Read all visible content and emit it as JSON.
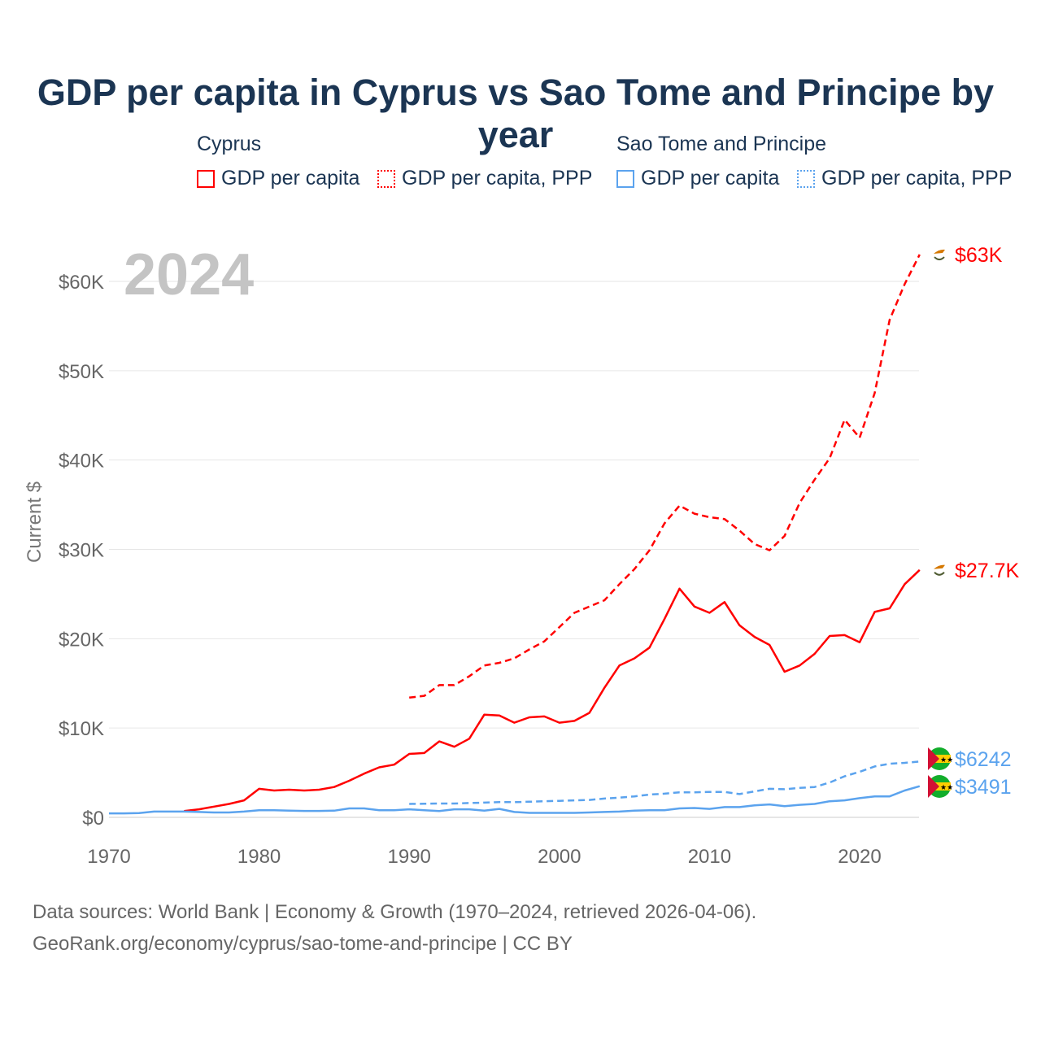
{
  "chart_data": {
    "type": "line",
    "title": "GDP per capita in Cyprus vs Sao Tome and Principe by year",
    "ylabel": "Current $",
    "xlabel": "",
    "year_watermark": "2024",
    "xlim": [
      1970,
      2024
    ],
    "ylim": [
      0,
      60000
    ],
    "x_ticks": [
      "1970",
      "1980",
      "1990",
      "2000",
      "2010",
      "2020"
    ],
    "y_ticks": [
      {
        "v": 0,
        "label": "$0"
      },
      {
        "v": 10,
        "label": "$10K"
      },
      {
        "v": 20,
        "label": "$20K"
      },
      {
        "v": 30,
        "label": "$30K"
      },
      {
        "v": 40,
        "label": "$40K"
      },
      {
        "v": 50,
        "label": "$50K"
      },
      {
        "v": 60,
        "label": "$60K"
      }
    ],
    "value_unit_thousands": true,
    "legend": {
      "groups": [
        {
          "country": "Cyprus",
          "items": [
            "GDP per capita",
            "GDP per capita, PPP"
          ]
        },
        {
          "country": "Sao Tome and Principe",
          "items": [
            "GDP per capita",
            "GDP per capita, PPP"
          ]
        }
      ]
    },
    "series": [
      {
        "name": "Cyprus GDP per capita",
        "color": "#ff0000",
        "dash": false,
        "start_year": 1975,
        "end_label": "$27.7K",
        "values": [
          0.7,
          0.9,
          1.2,
          1.5,
          1.9,
          3.2,
          3.0,
          3.1,
          3.0,
          3.1,
          3.4,
          4.1,
          4.9,
          5.6,
          5.9,
          7.1,
          7.2,
          8.5,
          7.9,
          8.8,
          11.5,
          11.4,
          10.6,
          11.2,
          11.3,
          10.6,
          10.8,
          11.7,
          14.5,
          17.0,
          17.8,
          19.0,
          22.2,
          25.6,
          23.6,
          22.9,
          24.1,
          21.5,
          20.2,
          19.3,
          16.3,
          17.0,
          18.3,
          20.3,
          20.4,
          19.6,
          23.0,
          23.4,
          26.1,
          27.7
        ]
      },
      {
        "name": "Cyprus GDP per capita, PPP",
        "color": "#ff0000",
        "dash": true,
        "start_year": 1990,
        "end_label": "$63K",
        "values": [
          13.4,
          13.6,
          14.8,
          14.8,
          15.8,
          17.0,
          17.3,
          17.8,
          18.8,
          19.7,
          21.3,
          22.9,
          23.6,
          24.3,
          26.1,
          27.8,
          29.9,
          32.9,
          34.9,
          34.0,
          33.6,
          33.4,
          32.1,
          30.6,
          29.9,
          31.5,
          35.2,
          37.8,
          40.2,
          44.5,
          42.5,
          47.5,
          55.7,
          59.7,
          63.0
        ]
      },
      {
        "name": "Sao Tome and Principe GDP per capita",
        "color": "#5ba3ee",
        "dash": false,
        "start_year": 1970,
        "end_label": "$3491",
        "values": [
          0.45,
          0.45,
          0.48,
          0.65,
          0.65,
          0.65,
          0.6,
          0.55,
          0.55,
          0.65,
          0.8,
          0.8,
          0.75,
          0.72,
          0.72,
          0.75,
          1.0,
          1.0,
          0.8,
          0.8,
          0.9,
          0.8,
          0.7,
          0.9,
          0.9,
          0.75,
          0.95,
          0.6,
          0.5,
          0.5,
          0.5,
          0.5,
          0.55,
          0.6,
          0.65,
          0.75,
          0.8,
          0.8,
          1.0,
          1.05,
          0.95,
          1.15,
          1.15,
          1.35,
          1.45,
          1.25,
          1.4,
          1.5,
          1.8,
          1.9,
          2.15,
          2.35,
          2.35,
          3.0,
          3.491
        ]
      },
      {
        "name": "Sao Tome and Principe GDP per capita, PPP",
        "color": "#5ba3ee",
        "dash": true,
        "start_year": 1990,
        "end_label": "$6242",
        "values": [
          1.5,
          1.52,
          1.55,
          1.55,
          1.6,
          1.65,
          1.7,
          1.7,
          1.75,
          1.8,
          1.85,
          1.9,
          1.95,
          2.1,
          2.2,
          2.35,
          2.55,
          2.65,
          2.8,
          2.8,
          2.85,
          2.85,
          2.6,
          2.9,
          3.2,
          3.15,
          3.3,
          3.4,
          3.9,
          4.6,
          5.1,
          5.7,
          6.0,
          6.1,
          6.242
        ]
      }
    ]
  },
  "footer": {
    "line1": "Data sources: World Bank | Economy & Growth (1970–2024, retrieved 2026-04-06).",
    "line2": "GeoRank.org/economy/cyprus/sao-tome-and-principe | CC BY"
  }
}
